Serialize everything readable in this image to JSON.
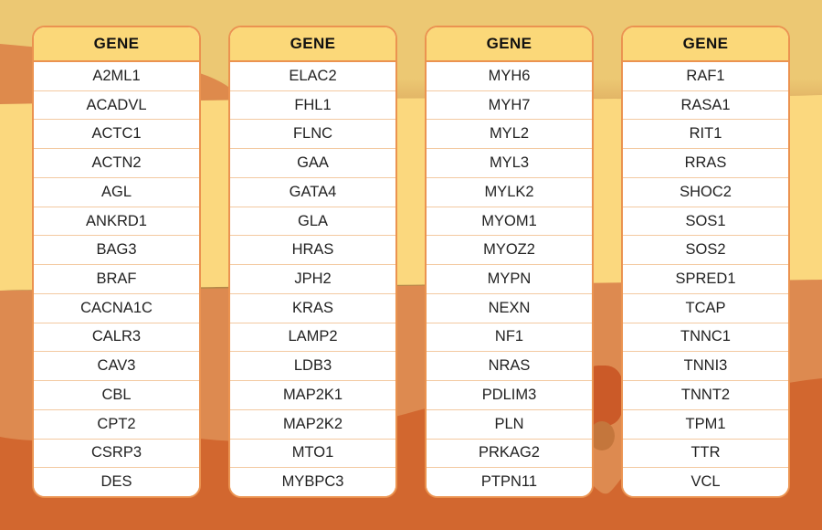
{
  "background": {
    "band_top_color": "#ECC873",
    "band_top_edge_color": "#D9A158",
    "ribbon_color": "#DE8A4C",
    "band_yellow_color": "#FBD87E",
    "band_orange_color": "#DD8A50",
    "band_dark_color": "#D2672F",
    "blob_dark_color": "#CB5A28",
    "blob_brown_color": "#C4763C",
    "band_shadow_color": "#7A3D10"
  },
  "table_style": {
    "header_bg": "#FBD879",
    "border_color": "#EB9350",
    "row_divider_color": "#F3C9A1",
    "row_bg": "#FFFFFF",
    "header_text_color": "#111111",
    "row_text_color": "#222222"
  },
  "tables": [
    {
      "header": "GENE",
      "genes": [
        "A2ML1",
        "ACADVL",
        "ACTC1",
        "ACTN2",
        "AGL",
        "ANKRD1",
        "BAG3",
        "BRAF",
        "CACNA1C",
        "CALR3",
        "CAV3",
        "CBL",
        "CPT2",
        "CSRP3",
        "DES"
      ]
    },
    {
      "header": "GENE",
      "genes": [
        "ELAC2",
        "FHL1",
        "FLNC",
        "GAA",
        "GATA4",
        "GLA",
        "HRAS",
        "JPH2",
        "KRAS",
        "LAMP2",
        "LDB3",
        "MAP2K1",
        "MAP2K2",
        "MTO1",
        "MYBPC3"
      ]
    },
    {
      "header": "GENE",
      "genes": [
        "MYH6",
        "MYH7",
        "MYL2",
        "MYL3",
        "MYLK2",
        "MYOM1",
        "MYOZ2",
        "MYPN",
        "NEXN",
        "NF1",
        "NRAS",
        "PDLIM3",
        "PLN",
        "PRKAG2",
        "PTPN11"
      ]
    },
    {
      "header": "GENE",
      "genes": [
        "RAF1",
        "RASA1",
        "RIT1",
        "RRAS",
        "SHOC2",
        "SOS1",
        "SOS2",
        "SPRED1",
        "TCAP",
        "TNNC1",
        "TNNI3",
        "TNNT2",
        "TPM1",
        "TTR",
        "VCL"
      ]
    }
  ]
}
